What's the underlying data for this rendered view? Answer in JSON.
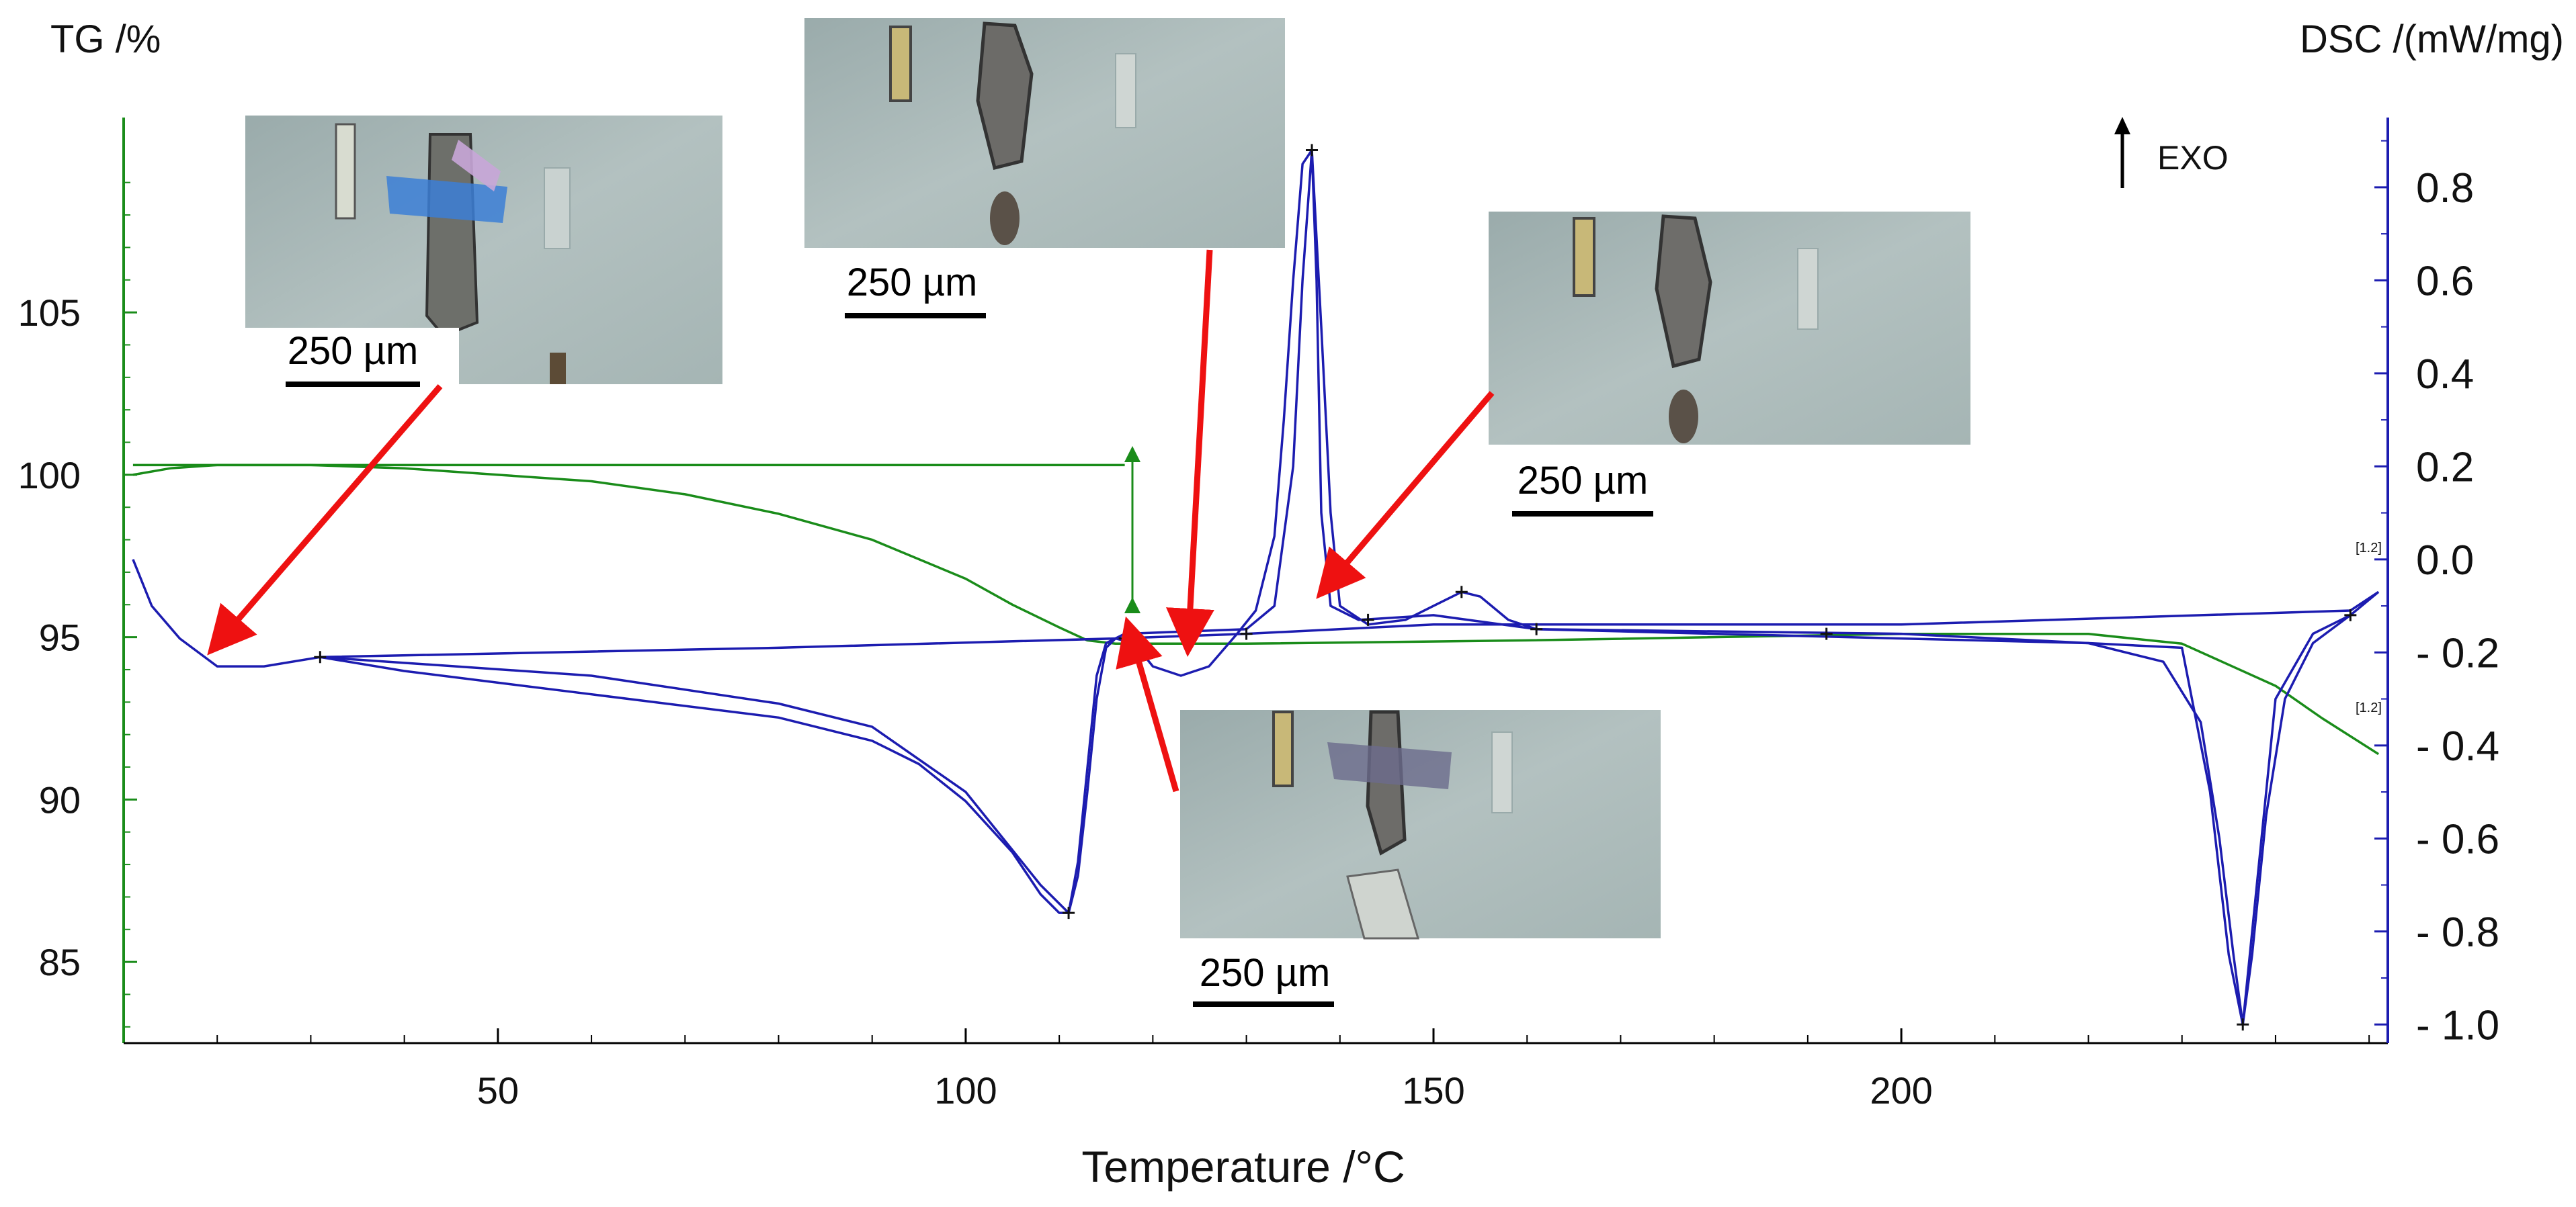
{
  "chart_data": {
    "type": "line",
    "title": "",
    "xlabel": "Temperature /°C",
    "ylabel_left": "TG /%",
    "ylabel_right": "DSC /(mW/mg)",
    "exo_label": "EXO",
    "xlim": [
      10,
      252
    ],
    "ylim_left": [
      82.5,
      111
    ],
    "ylim_right": [
      -1.04,
      0.95
    ],
    "x_ticks": [
      50,
      100,
      150,
      200
    ],
    "y_ticks_left": [
      85,
      90,
      95,
      100,
      105
    ],
    "y_ticks_right": [
      0.8,
      0.6,
      0.4,
      0.2,
      0.0,
      -0.2,
      -0.4,
      -0.6,
      -0.8,
      -1.0
    ],
    "y_tick_labels_right": [
      "0.8",
      "0.6",
      "0.4",
      "0.2",
      "0.0",
      "- 0.2",
      "- 0.4",
      "- 0.6",
      "- 0.8",
      "- 1.0"
    ],
    "end_marker_label": "[1.2]",
    "series": [
      {
        "axis": "left",
        "color": "#1a8c1a",
        "points": [
          [
            11,
            100.0
          ],
          [
            15,
            100.2
          ],
          [
            20,
            100.3
          ],
          [
            30,
            100.3
          ],
          [
            40,
            100.2
          ],
          [
            50,
            100.0
          ],
          [
            60,
            99.8
          ],
          [
            70,
            99.4
          ],
          [
            80,
            98.8
          ],
          [
            90,
            98.0
          ],
          [
            100,
            96.8
          ],
          [
            105,
            96.0
          ],
          [
            110,
            95.3
          ],
          [
            113,
            94.9
          ],
          [
            116,
            94.8
          ],
          [
            130,
            94.8
          ],
          [
            160,
            94.9
          ],
          [
            200,
            95.1
          ],
          [
            220,
            95.1
          ],
          [
            230,
            94.8
          ],
          [
            240,
            93.5
          ],
          [
            245,
            92.5
          ],
          [
            251,
            91.4
          ]
        ]
      },
      {
        "axis": "left",
        "color": "#1a8c1a",
        "points": [
          [
            11,
            100.3
          ],
          [
            117,
            100.3
          ]
        ]
      },
      {
        "axis": "right",
        "color": "#1c1cb0",
        "points": [
          [
            11,
            0.0
          ],
          [
            13,
            -0.1
          ],
          [
            16,
            -0.17
          ],
          [
            20,
            -0.23
          ],
          [
            25,
            -0.23
          ],
          [
            31,
            -0.21
          ],
          [
            40,
            -0.24
          ],
          [
            60,
            -0.29
          ],
          [
            80,
            -0.34
          ],
          [
            90,
            -0.39
          ],
          [
            95,
            -0.44
          ],
          [
            100,
            -0.52
          ],
          [
            105,
            -0.63
          ],
          [
            108,
            -0.72
          ],
          [
            110,
            -0.76
          ],
          [
            111,
            -0.76
          ],
          [
            112,
            -0.68
          ],
          [
            113,
            -0.5
          ],
          [
            114,
            -0.3
          ],
          [
            115,
            -0.19
          ],
          [
            116,
            -0.17
          ],
          [
            118,
            -0.18
          ],
          [
            120,
            -0.23
          ],
          [
            123,
            -0.25
          ],
          [
            126,
            -0.23
          ],
          [
            129,
            -0.16
          ],
          [
            131,
            -0.11
          ],
          [
            133,
            0.05
          ],
          [
            134,
            0.3
          ],
          [
            135,
            0.6
          ],
          [
            136,
            0.85
          ],
          [
            137,
            0.88
          ],
          [
            138,
            0.5
          ],
          [
            139,
            0.1
          ],
          [
            140,
            -0.1
          ],
          [
            143,
            -0.14
          ],
          [
            147,
            -0.13
          ],
          [
            150,
            -0.1
          ],
          [
            153,
            -0.07
          ],
          [
            155,
            -0.08
          ],
          [
            158,
            -0.13
          ],
          [
            161,
            -0.15
          ],
          [
            180,
            -0.16
          ],
          [
            200,
            -0.17
          ],
          [
            220,
            -0.18
          ],
          [
            228,
            -0.22
          ],
          [
            232,
            -0.35
          ],
          [
            234,
            -0.6
          ],
          [
            235.5,
            -0.85
          ],
          [
            236.5,
            -1.0
          ],
          [
            237.5,
            -0.85
          ],
          [
            239,
            -0.55
          ],
          [
            241,
            -0.3
          ],
          [
            244,
            -0.18
          ],
          [
            248,
            -0.12
          ],
          [
            251,
            -0.07
          ]
        ]
      },
      {
        "axis": "right",
        "color": "#1c1cb0",
        "points": [
          [
            31,
            -0.21
          ],
          [
            60,
            -0.25
          ],
          [
            80,
            -0.31
          ],
          [
            90,
            -0.36
          ],
          [
            100,
            -0.5
          ],
          [
            108,
            -0.7
          ],
          [
            111,
            -0.76
          ],
          [
            112,
            -0.65
          ],
          [
            113,
            -0.45
          ],
          [
            114,
            -0.25
          ],
          [
            115,
            -0.18
          ],
          [
            117,
            -0.16
          ],
          [
            130,
            -0.15
          ],
          [
            133,
            -0.1
          ],
          [
            135,
            0.2
          ],
          [
            136,
            0.6
          ],
          [
            137,
            0.88
          ],
          [
            137.5,
            0.6
          ],
          [
            138,
            0.1
          ],
          [
            139,
            -0.1
          ],
          [
            142,
            -0.13
          ],
          [
            150,
            -0.12
          ],
          [
            161,
            -0.15
          ],
          [
            200,
            -0.16
          ],
          [
            230,
            -0.19
          ],
          [
            233,
            -0.5
          ],
          [
            235,
            -0.85
          ],
          [
            236.5,
            -1.0
          ],
          [
            238,
            -0.7
          ],
          [
            240,
            -0.3
          ],
          [
            244,
            -0.16
          ],
          [
            248,
            -0.12
          ]
        ]
      },
      {
        "axis": "right",
        "color": "#1c1cb0",
        "points": [
          [
            31,
            -0.21
          ],
          [
            80,
            -0.19
          ],
          [
            116,
            -0.17
          ],
          [
            130,
            -0.16
          ],
          [
            150,
            -0.14
          ],
          [
            200,
            -0.14
          ],
          [
            248,
            -0.11
          ],
          [
            251,
            -0.07
          ]
        ]
      }
    ],
    "markers": [
      {
        "axis": "right",
        "x": 31,
        "y": -0.21
      },
      {
        "axis": "right",
        "x": 111,
        "y": -0.76
      },
      {
        "axis": "right",
        "x": 117,
        "y": -0.17
      },
      {
        "axis": "right",
        "x": 130,
        "y": -0.16
      },
      {
        "axis": "right",
        "x": 137,
        "y": 0.88
      },
      {
        "axis": "right",
        "x": 143,
        "y": -0.13
      },
      {
        "axis": "right",
        "x": 153,
        "y": -0.07
      },
      {
        "axis": "right",
        "x": 161,
        "y": -0.15
      },
      {
        "axis": "right",
        "x": 192,
        "y": -0.16
      },
      {
        "axis": "right",
        "x": 236.5,
        "y": -1.0
      },
      {
        "axis": "right",
        "x": 248,
        "y": -0.12
      }
    ],
    "photos": [
      {
        "name": "micrograph-1",
        "scale_label": "250 µm"
      },
      {
        "name": "micrograph-2",
        "scale_label": "250 µm"
      },
      {
        "name": "micrograph-3",
        "scale_label": "250 µm"
      },
      {
        "name": "micrograph-4",
        "scale_label": "250 µm"
      }
    ],
    "colors": {
      "tg": "#1a8c1a",
      "dsc": "#1c1cb0",
      "arrow": "#ee1111",
      "photo_bg": "#a9b8b8"
    }
  }
}
